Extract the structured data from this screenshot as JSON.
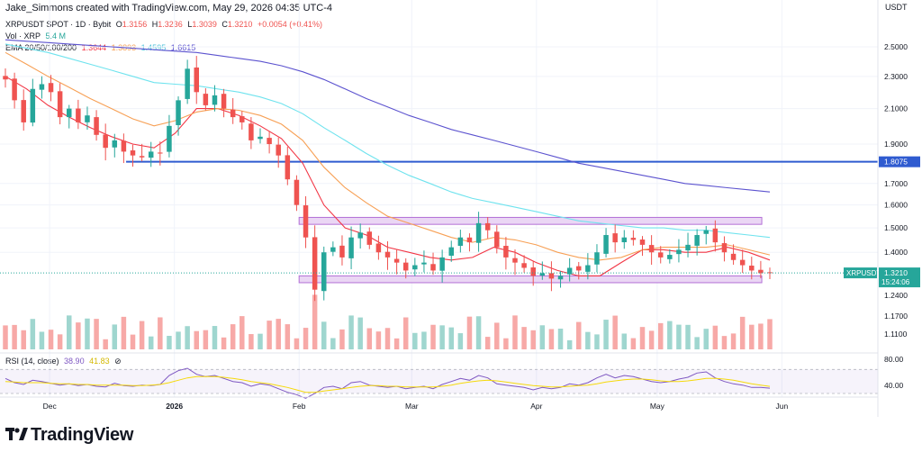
{
  "header": {
    "creator_text": "Jake_Simmons created with TradingView.com, May 29, 2026 04:35 UTC-4",
    "currency": "USDT"
  },
  "legend": {
    "symbol": "XRPUSDT SPOT · 1D · Bybit",
    "open_label": "O",
    "open": "1.3156",
    "high_label": "H",
    "high": "1.3236",
    "low_label": "L",
    "low": "1.3039",
    "close_label": "C",
    "close": "1.3210",
    "change": "+0.0054 (+0.41%)",
    "vol_label": "Vol · XRP",
    "vol_value": "5.4 M",
    "ema_label": "EMA 20/50/100/200",
    "ema_values": [
      "1.3644",
      "1.3893",
      "1.4595",
      "1.6615"
    ],
    "rsi_label": "RSI (14, close)",
    "rsi_values": [
      "38.90",
      "41.83"
    ],
    "rsi_extra": "⊘"
  },
  "colors": {
    "up": "#26a69a",
    "down": "#ef5350",
    "up_vol": "#9fd6cf",
    "down_vol": "#f7a9a7",
    "ema20": "#f23645",
    "ema50": "#f7a055",
    "ema100": "#6fe3ee",
    "ema200": "#5c53cf",
    "support": "#2f5bd0",
    "zone_fill": "#e6cff2",
    "zone_border": "#b36fd6",
    "rsi_line": "#7e57c2",
    "rsi_ma": "#f5d90a",
    "price_tag": "#26a69a"
  },
  "price_axis": {
    "ticks": [
      "2.5000",
      "2.3000",
      "2.1000",
      "1.9000",
      "1.7000",
      "1.6000",
      "1.5000",
      "1.4000",
      "1.2400",
      "1.1700",
      "1.1100"
    ],
    "support_label": "1.8075",
    "price_tag_symbol": "XRPUSDT",
    "price_tag_value": "1.3210",
    "countdown": "15:24:06"
  },
  "rsi_axis": {
    "ticks": [
      "80.00",
      "40.00"
    ]
  },
  "time_axis": {
    "labels": [
      "Dec",
      "2026",
      "Feb",
      "Mar",
      "Apr",
      "May",
      "Jun"
    ]
  },
  "chart_data": {
    "type": "candlestick",
    "title": "XRPUSDT SPOT · 1D · Bybit",
    "y_unit": "USDT",
    "x_start": "2025-11-20",
    "x_end": "2026-05-29",
    "ylim": [
      1.24,
      2.58
    ],
    "log_scale": true,
    "support_level": 1.8075,
    "zones": [
      {
        "from_x": "2026-02-01",
        "to_x": "2026-05-27",
        "low": 1.515,
        "high": 1.545
      },
      {
        "from_x": "2026-02-01",
        "to_x": "2026-05-27",
        "low": 1.285,
        "high": 1.31
      }
    ],
    "ema_series": [
      {
        "name": "EMA 20",
        "values": [
          2.3,
          2.22,
          2.12,
          2.05,
          1.99,
          1.94,
          1.9,
          1.88,
          1.96,
          2.1,
          2.1,
          2.06,
          2.0,
          1.93,
          1.8,
          1.6,
          1.5,
          1.47,
          1.42,
          1.4,
          1.38,
          1.37,
          1.38,
          1.42,
          1.4,
          1.36,
          1.33,
          1.31,
          1.31,
          1.36,
          1.41,
          1.41,
          1.4,
          1.4,
          1.42,
          1.4,
          1.37
        ]
      },
      {
        "name": "EMA 50",
        "values": [
          2.46,
          2.38,
          2.3,
          2.23,
          2.16,
          2.1,
          2.04,
          2.0,
          2.03,
          2.08,
          2.1,
          2.09,
          2.06,
          2.01,
          1.92,
          1.78,
          1.68,
          1.61,
          1.55,
          1.52,
          1.49,
          1.46,
          1.44,
          1.46,
          1.45,
          1.43,
          1.4,
          1.38,
          1.37,
          1.38,
          1.41,
          1.42,
          1.42,
          1.42,
          1.43,
          1.41,
          1.39
        ]
      },
      {
        "name": "EMA 100",
        "values": [
          2.52,
          2.49,
          2.46,
          2.42,
          2.38,
          2.34,
          2.3,
          2.26,
          2.25,
          2.24,
          2.22,
          2.2,
          2.17,
          2.13,
          2.07,
          1.99,
          1.92,
          1.85,
          1.79,
          1.74,
          1.7,
          1.66,
          1.63,
          1.61,
          1.59,
          1.57,
          1.55,
          1.53,
          1.52,
          1.51,
          1.5,
          1.5,
          1.49,
          1.49,
          1.48,
          1.47,
          1.46
        ]
      },
      {
        "name": "EMA 200",
        "values": [
          2.55,
          2.54,
          2.53,
          2.52,
          2.51,
          2.5,
          2.49,
          2.48,
          2.47,
          2.46,
          2.44,
          2.42,
          2.4,
          2.37,
          2.33,
          2.28,
          2.22,
          2.16,
          2.11,
          2.06,
          2.02,
          1.98,
          1.95,
          1.92,
          1.89,
          1.86,
          1.83,
          1.8,
          1.78,
          1.76,
          1.74,
          1.72,
          1.7,
          1.69,
          1.68,
          1.67,
          1.66
        ]
      }
    ],
    "price_path": [
      2.28,
      2.15,
      2.02,
      2.22,
      2.25,
      2.2,
      2.05,
      2.1,
      2.02,
      2.06,
      1.95,
      1.88,
      1.92,
      1.86,
      1.84,
      1.83,
      1.86,
      1.85,
      2.0,
      2.15,
      2.35,
      2.2,
      2.12,
      2.18,
      2.1,
      2.05,
      2.02,
      1.92,
      1.94,
      1.9,
      1.84,
      1.72,
      1.6,
      1.46,
      1.26,
      1.4,
      1.42,
      1.38,
      1.46,
      1.48,
      1.43,
      1.4,
      1.38,
      1.36,
      1.33,
      1.35,
      1.36,
      1.33,
      1.38,
      1.42,
      1.46,
      1.44,
      1.52,
      1.49,
      1.42,
      1.38,
      1.36,
      1.34,
      1.31,
      1.32,
      1.3,
      1.31,
      1.34,
      1.33,
      1.35,
      1.4,
      1.47,
      1.44,
      1.46,
      1.45,
      1.43,
      1.4,
      1.38,
      1.39,
      1.41,
      1.43,
      1.47,
      1.49,
      1.44,
      1.4,
      1.37,
      1.35,
      1.33,
      1.32,
      1.32
    ],
    "rsi_series": [
      {
        "name": "RSI",
        "values": [
          55,
          48,
          45,
          52,
          50,
          47,
          44,
          46,
          43,
          45,
          42,
          41,
          47,
          43,
          42,
          44,
          43,
          45,
          60,
          68,
          72,
          62,
          58,
          60,
          55,
          50,
          48,
          42,
          46,
          44,
          38,
          32,
          28,
          22,
          30,
          40,
          42,
          38,
          48,
          50,
          44,
          42,
          40,
          42,
          38,
          40,
          42,
          38,
          45,
          50,
          55,
          52,
          60,
          56,
          46,
          44,
          42,
          40,
          36,
          40,
          38,
          40,
          46,
          44,
          48,
          56,
          62,
          56,
          60,
          58,
          54,
          50,
          48,
          50,
          54,
          57,
          64,
          66,
          56,
          50,
          46,
          44,
          40,
          40,
          38.9
        ]
      },
      {
        "name": "RSI MA",
        "values": [
          50,
          49,
          48,
          48,
          48,
          47,
          46,
          46,
          45,
          45,
          44,
          44,
          44,
          44,
          43,
          43,
          44,
          45,
          48,
          52,
          56,
          58,
          58,
          58,
          57,
          55,
          53,
          50,
          48,
          46,
          43,
          40,
          36,
          32,
          32,
          34,
          36,
          38,
          40,
          42,
          43,
          43,
          42,
          42,
          41,
          41,
          41,
          41,
          42,
          44,
          47,
          49,
          51,
          52,
          51,
          49,
          47,
          45,
          43,
          42,
          41,
          41,
          42,
          43,
          44,
          46,
          49,
          51,
          53,
          54,
          54,
          53,
          51,
          50,
          50,
          51,
          53,
          55,
          55,
          54,
          52,
          49,
          46,
          44,
          41.83
        ]
      }
    ]
  },
  "footer": {
    "brand": "TradingView"
  }
}
